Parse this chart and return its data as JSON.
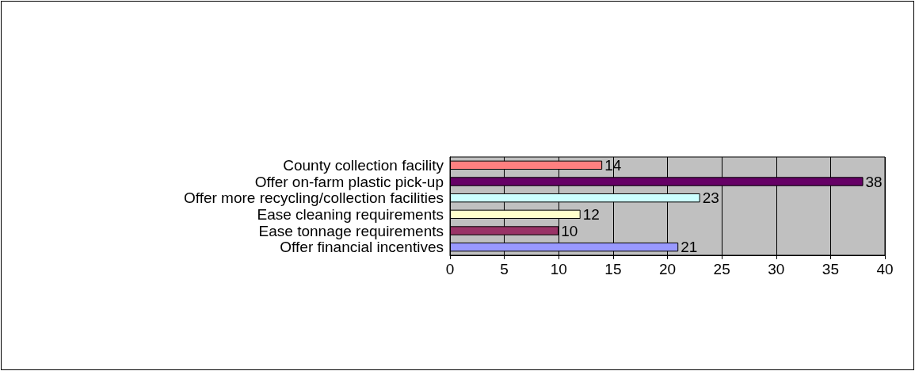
{
  "chart_data": {
    "type": "bar",
    "orientation": "horizontal",
    "categories": [
      "County collection facility",
      "Offer on-farm plastic pick-up",
      "Offer more recycling/collection facilities",
      "Ease cleaning requirements",
      "Ease tonnage requirements",
      "Offer financial incentives"
    ],
    "values": [
      14,
      38,
      23,
      12,
      10,
      21
    ],
    "colors": [
      "#ff8080",
      "#660066",
      "#ccffff",
      "#ffffcc",
      "#993366",
      "#9999ff"
    ],
    "xlim": [
      0,
      40
    ],
    "xticks": [
      0,
      5,
      10,
      15,
      20,
      25,
      30,
      35,
      40
    ],
    "grid": "x",
    "data_labels": true
  }
}
